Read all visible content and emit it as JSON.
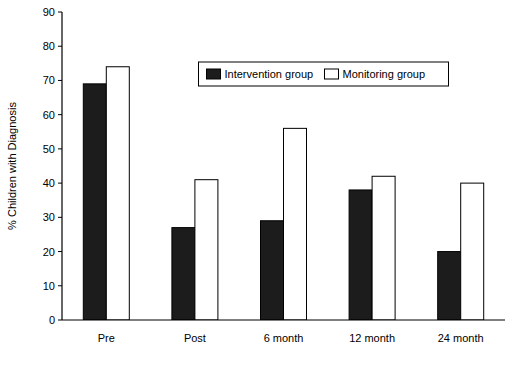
{
  "chart_data": {
    "type": "bar",
    "y_label": "% Children with Diagnosis",
    "categories": [
      "Pre",
      "Post",
      "6 month",
      "12 month",
      "24 month"
    ],
    "series": [
      {
        "name": "Intervention group",
        "color": "#1c1c1c",
        "values": [
          69,
          27,
          29,
          38,
          20
        ]
      },
      {
        "name": "Monitoring group",
        "color": "#ffffff",
        "values": [
          74,
          41,
          56,
          42,
          40
        ]
      }
    ],
    "ylim": [
      0,
      90
    ],
    "yticks": [
      0,
      10,
      20,
      30,
      40,
      50,
      60,
      70,
      80,
      90
    ],
    "grid": false,
    "legend": "top"
  }
}
